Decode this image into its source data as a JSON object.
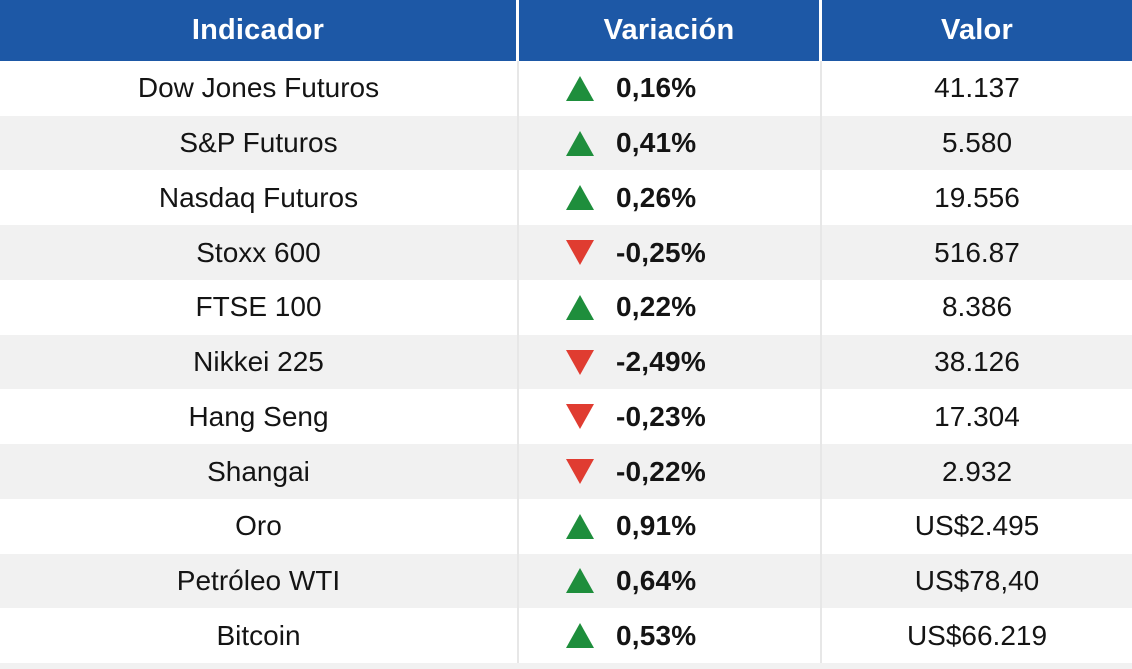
{
  "colors": {
    "header_bg": "#1d58a6",
    "row_alt_bg": "#f1f1f1",
    "up_green": "#1e8e3c",
    "down_red": "#e03c31",
    "text": "#141414",
    "divider": "#e7e7e7",
    "header_text": "#ffffff"
  },
  "chart_data": {
    "type": "table",
    "columns": [
      "Indicador",
      "Variación",
      "Valor"
    ],
    "rows": [
      {
        "indicador": "Dow Jones Futuros",
        "direction": "up",
        "variacion": "0,16%",
        "valor": "41.137"
      },
      {
        "indicador": "S&P Futuros",
        "direction": "up",
        "variacion": "0,41%",
        "valor": "5.580"
      },
      {
        "indicador": "Nasdaq Futuros",
        "direction": "up",
        "variacion": "0,26%",
        "valor": "19.556"
      },
      {
        "indicador": "Stoxx 600",
        "direction": "down",
        "variacion": "-0,25%",
        "valor": "516.87"
      },
      {
        "indicador": "FTSE 100",
        "direction": "up",
        "variacion": "0,22%",
        "valor": "8.386"
      },
      {
        "indicador": "Nikkei 225",
        "direction": "down",
        "variacion": "-2,49%",
        "valor": "38.126"
      },
      {
        "indicador": "Hang Seng",
        "direction": "down",
        "variacion": "-0,23%",
        "valor": "17.304"
      },
      {
        "indicador": "Shangai",
        "direction": "down",
        "variacion": "-0,22%",
        "valor": "2.932"
      },
      {
        "indicador": "Oro",
        "direction": "up",
        "variacion": "0,91%",
        "valor": "US$2.495"
      },
      {
        "indicador": "Petróleo WTI",
        "direction": "up",
        "variacion": "0,64%",
        "valor": "US$78,40"
      },
      {
        "indicador": "Bitcoin",
        "direction": "up",
        "variacion": "0,53%",
        "valor": "US$66.219"
      }
    ]
  }
}
